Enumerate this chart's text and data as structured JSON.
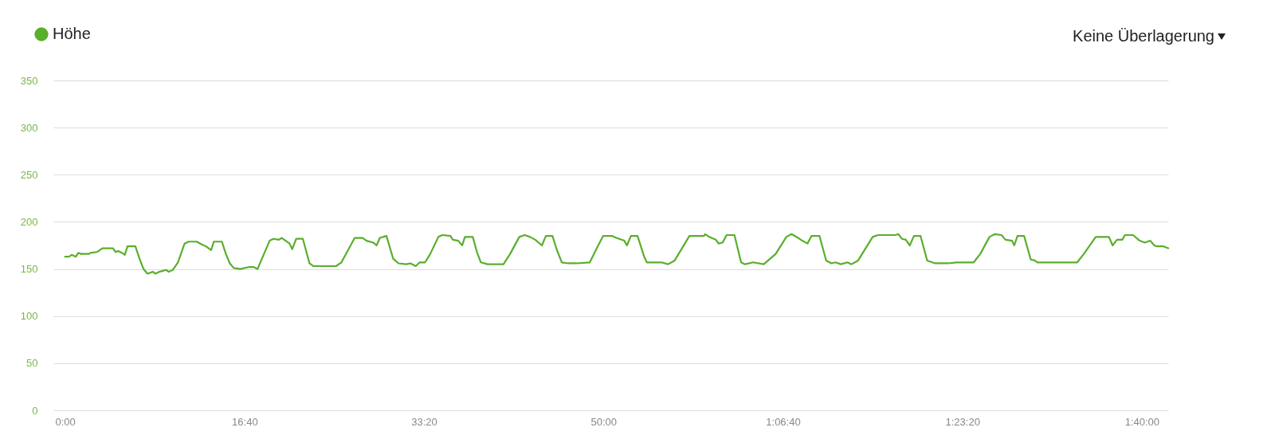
{
  "chart_data": {
    "type": "line",
    "x": [
      0,
      22,
      37,
      60,
      74,
      89,
      134,
      141,
      178,
      208,
      267,
      282,
      296,
      318,
      333,
      348,
      392,
      415,
      437,
      459,
      489,
      503,
      526,
      563,
      578,
      600,
      629,
      666,
      689,
      733,
      762,
      785,
      814,
      829,
      874,
      896,
      918,
      940,
      977,
      1022,
      1051,
      1073,
      1088,
      1140,
      1162,
      1192,
      1207,
      1251,
      1266,
      1288,
      1325,
      1362,
      1384,
      1510,
      1540,
      1614,
      1658,
      1680,
      1717,
      1736,
      1754,
      1791,
      1828,
      1858,
      1902,
      1924,
      1954,
      1976,
      2006,
      2035,
      2080,
      2102,
      2147,
      2161,
      2191,
      2213,
      2228,
      2272,
      2295,
      2317,
      2354,
      2443,
      2480,
      2531,
      2561,
      2591,
      2620,
      2657,
      2679,
      2716,
      2739,
      2768,
      2805,
      2850,
      2924,
      2968,
      2998,
      3049,
      3072,
      3116,
      3131,
      3153,
      3190,
      3227,
      3242,
      3323,
      3360,
      3397,
      3479,
      3560,
      3567,
      3590,
      3627,
      3641,
      3664,
      3686,
      3730,
      3767,
      3789,
      3834,
      3893,
      3960,
      4019,
      4048,
      4085,
      4108,
      4137,
      4159,
      4204,
      4241,
      4270,
      4293,
      4323,
      4360,
      4382,
      4419,
      4500,
      4530,
      4626,
      4644,
      4663,
      4685,
      4707,
      4730,
      4767,
      4804,
      4848,
      4922,
      4966,
      5063,
      5100,
      5151,
      5181,
      5218,
      5240,
      5277,
      5289,
      5307,
      5344,
      5381,
      5403,
      5418,
      5640,
      5677,
      5743,
      5817,
      5837,
      5862,
      5891,
      5906,
      5951,
      5988,
      6017,
      6047,
      6069,
      6084,
      6121,
      6147
    ],
    "series": [
      {
        "name": "Höhe",
        "color": "#5aae2c",
        "values": [
          163,
          163,
          165,
          163,
          167,
          166,
          166,
          167,
          168,
          172,
          172,
          168,
          169,
          167,
          165,
          174,
          174,
          161,
          150,
          145,
          147,
          145,
          147,
          149,
          147,
          149,
          157,
          177,
          179,
          179,
          176,
          174,
          170,
          179,
          179,
          166,
          156,
          151,
          150,
          152,
          152,
          150,
          157,
          180,
          182,
          181,
          183,
          177,
          171,
          182,
          182,
          156,
          153,
          153,
          157,
          183,
          183,
          180,
          178,
          175,
          183,
          185,
          161,
          156,
          155,
          156,
          153,
          157,
          157,
          166,
          184,
          186,
          185,
          181,
          180,
          175,
          184,
          184,
          168,
          157,
          155,
          155,
          166,
          184,
          186,
          184,
          181,
          175,
          185,
          185,
          171,
          157,
          156,
          156,
          157,
          174,
          185,
          185,
          183,
          180,
          175,
          185,
          185,
          163,
          157,
          157,
          155,
          159,
          185,
          185,
          187,
          184,
          181,
          177,
          178,
          186,
          186,
          157,
          155,
          157,
          155,
          166,
          184,
          187,
          183,
          180,
          177,
          185,
          185,
          159,
          156,
          157,
          155,
          157,
          155,
          159,
          184,
          186,
          186,
          187,
          182,
          181,
          175,
          185,
          185,
          159,
          156,
          156,
          157,
          157,
          166,
          184,
          187,
          186,
          181,
          180,
          175,
          185,
          185,
          160,
          159,
          157,
          157,
          166,
          184,
          184,
          175,
          181,
          181,
          186,
          186,
          180,
          178,
          180,
          175,
          174,
          174,
          172
        ]
      }
    ],
    "xlim": [
      -65,
      6147
    ],
    "ylim": [
      0,
      350
    ],
    "xticks": [
      {
        "value": 0,
        "label": "0:00"
      },
      {
        "value": 1000,
        "label": "16:40"
      },
      {
        "value": 2000,
        "label": "33:20"
      },
      {
        "value": 3000,
        "label": "50:00"
      },
      {
        "value": 4000,
        "label": "1:06:40"
      },
      {
        "value": 5000,
        "label": "1:23:20"
      },
      {
        "value": 6000,
        "label": "1:40:00"
      }
    ],
    "yticks": [
      0,
      50,
      100,
      150,
      200,
      250,
      300,
      350
    ],
    "grid": "y",
    "legend": "top left",
    "annotations": [
      "Keine Überlagerung"
    ]
  }
}
